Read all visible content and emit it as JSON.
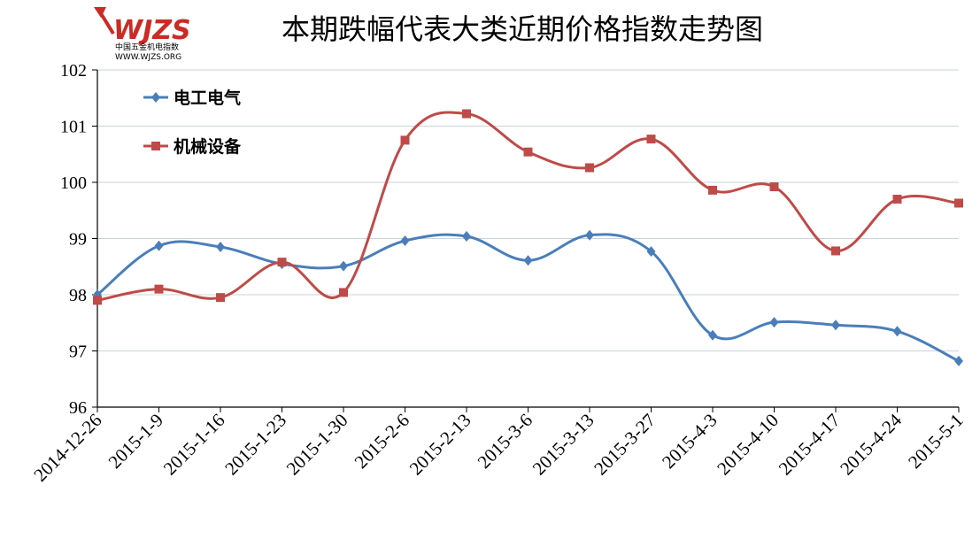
{
  "logo": {
    "brand": "WJZS",
    "name": "中国五金机电指数",
    "url": "WWW.WJZS.ORG"
  },
  "chart_data": {
    "type": "line",
    "title": "本期跌幅代表大类近期价格指数走势图",
    "xlabel": "",
    "ylabel": "",
    "categories": [
      "2014-12-26",
      "2015-1-9",
      "2015-1-16",
      "2015-1-23",
      "2015-1-30",
      "2015-2-6",
      "2015-2-13",
      "2015-3-6",
      "2015-3-13",
      "2015-3-27",
      "2015-4-3",
      "2015-4-10",
      "2015-4-17",
      "2015-4-24",
      "2015-5-1"
    ],
    "ylim": [
      96,
      102
    ],
    "yticks": [
      "96",
      "97",
      "98",
      "99",
      "100",
      "101",
      "102"
    ],
    "grid": true,
    "legend_position": "top-left",
    "series": [
      {
        "name": "电工电气",
        "color": "#4a7ebb",
        "marker": "diamond",
        "values": [
          98.0,
          98.87,
          98.85,
          98.55,
          98.51,
          98.96,
          99.04,
          98.61,
          99.06,
          98.77,
          97.28,
          97.51,
          97.46,
          97.35,
          96.82
        ]
      },
      {
        "name": "机械设备",
        "color": "#be4b48",
        "marker": "square",
        "values": [
          97.9,
          98.1,
          97.95,
          98.58,
          98.04,
          100.75,
          101.22,
          100.54,
          100.26,
          100.77,
          99.86,
          99.92,
          98.78,
          99.7,
          99.63
        ]
      }
    ]
  }
}
